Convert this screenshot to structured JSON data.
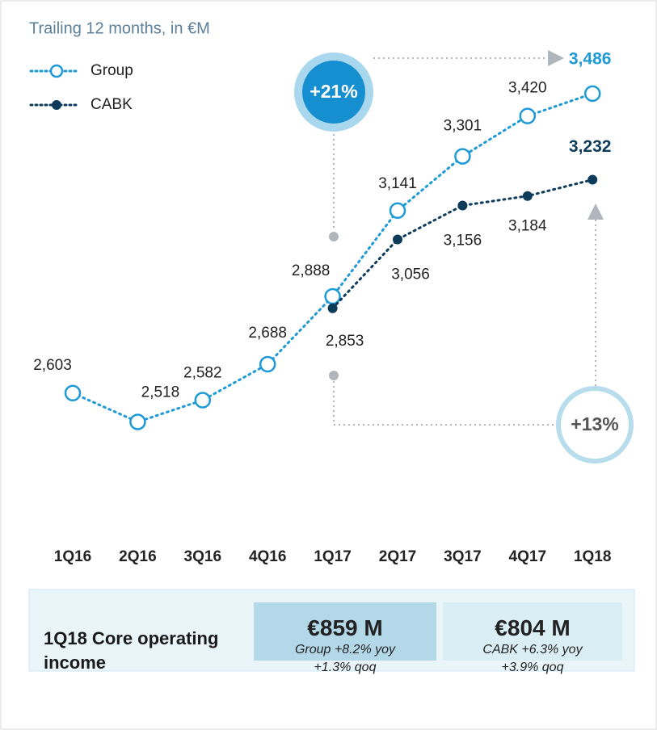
{
  "chart_data": {
    "type": "line",
    "title": "Trailing 12 months, in €M",
    "categories": [
      "1Q16",
      "2Q16",
      "3Q16",
      "4Q16",
      "1Q17",
      "2Q17",
      "3Q17",
      "4Q17",
      "1Q18"
    ],
    "series": [
      {
        "name": "Group",
        "color": "#1e9ad6",
        "values": [
          2603,
          2518,
          2582,
          2688,
          2888,
          3141,
          3301,
          3420,
          3486
        ],
        "value_labels": [
          "2,603",
          "2,518",
          "2,582",
          "2,688",
          "2,888",
          "3,141",
          "3,301",
          "3,420",
          "3,486"
        ]
      },
      {
        "name": "CABK",
        "color": "#0d3b5a",
        "values": [
          null,
          null,
          null,
          null,
          2853,
          3056,
          3156,
          3184,
          3232
        ],
        "value_labels": [
          null,
          null,
          null,
          null,
          "2,853",
          "3,056",
          "3,156",
          "3,184",
          "3,232"
        ]
      }
    ],
    "ylim": [
      2400,
      3600
    ],
    "grid": false,
    "annotations": [
      "+21%",
      "+13%"
    ],
    "summary": {
      "title": "1Q18 Core operating income",
      "boxes": [
        {
          "value": "€859 M",
          "lines": [
            "Group +8.2% yoy",
            "+1.3% qoq"
          ]
        },
        {
          "value": "€804 M",
          "lines": [
            "CABK +6.3% yoy",
            "+3.9% qoq"
          ]
        }
      ]
    }
  }
}
